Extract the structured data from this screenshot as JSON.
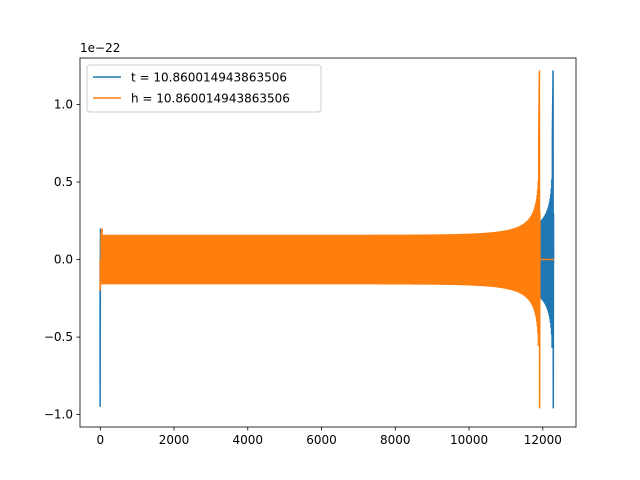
{
  "chart_data": {
    "type": "line",
    "title": "",
    "xlabel": "",
    "ylabel": "",
    "offset_text": "1e−22",
    "xlim": [
      -550,
      12900
    ],
    "ylim": [
      -1.08,
      1.3
    ],
    "xticks": [
      0,
      2000,
      4000,
      6000,
      8000,
      10000,
      12000
    ],
    "yticks": [
      -1.0,
      -0.5,
      0.0,
      0.5,
      1.0
    ],
    "xtick_labels": [
      "0",
      "2000",
      "4000",
      "6000",
      "8000",
      "10000",
      "12000"
    ],
    "ytick_labels": [
      "−1.0",
      "−0.5",
      "0.0",
      "0.5",
      "1.0"
    ],
    "grid": false,
    "legend_position": "upper-left",
    "series": [
      {
        "name": "t = 10.860014943863506",
        "color": "#1f77b4",
        "shape": "chirp-burst",
        "x_start": 0,
        "x_merger": 12290,
        "x_end": 12300,
        "envelope": {
          "initial_spike_x": [
            -5,
            5
          ],
          "initial_spike_y": [
            -0.95,
            0.2
          ],
          "start_amplitude": 0.155,
          "end_amplitude_before_merger": 0.82,
          "peak_max": 1.22,
          "peak_min": -0.96
        }
      },
      {
        "name": "h = 10.860014943863506",
        "color": "#ff7f0e",
        "shape": "chirp-burst",
        "x_start": 0,
        "x_merger": 11920,
        "x_end": 12300,
        "envelope": {
          "initial_spike_x": [
            0,
            50
          ],
          "initial_spike_y": [
            -0.2,
            0.2
          ],
          "start_amplitude": 0.16,
          "end_amplitude_before_merger": 0.8,
          "peak_max": 1.22,
          "peak_min": -0.96
        }
      }
    ]
  }
}
